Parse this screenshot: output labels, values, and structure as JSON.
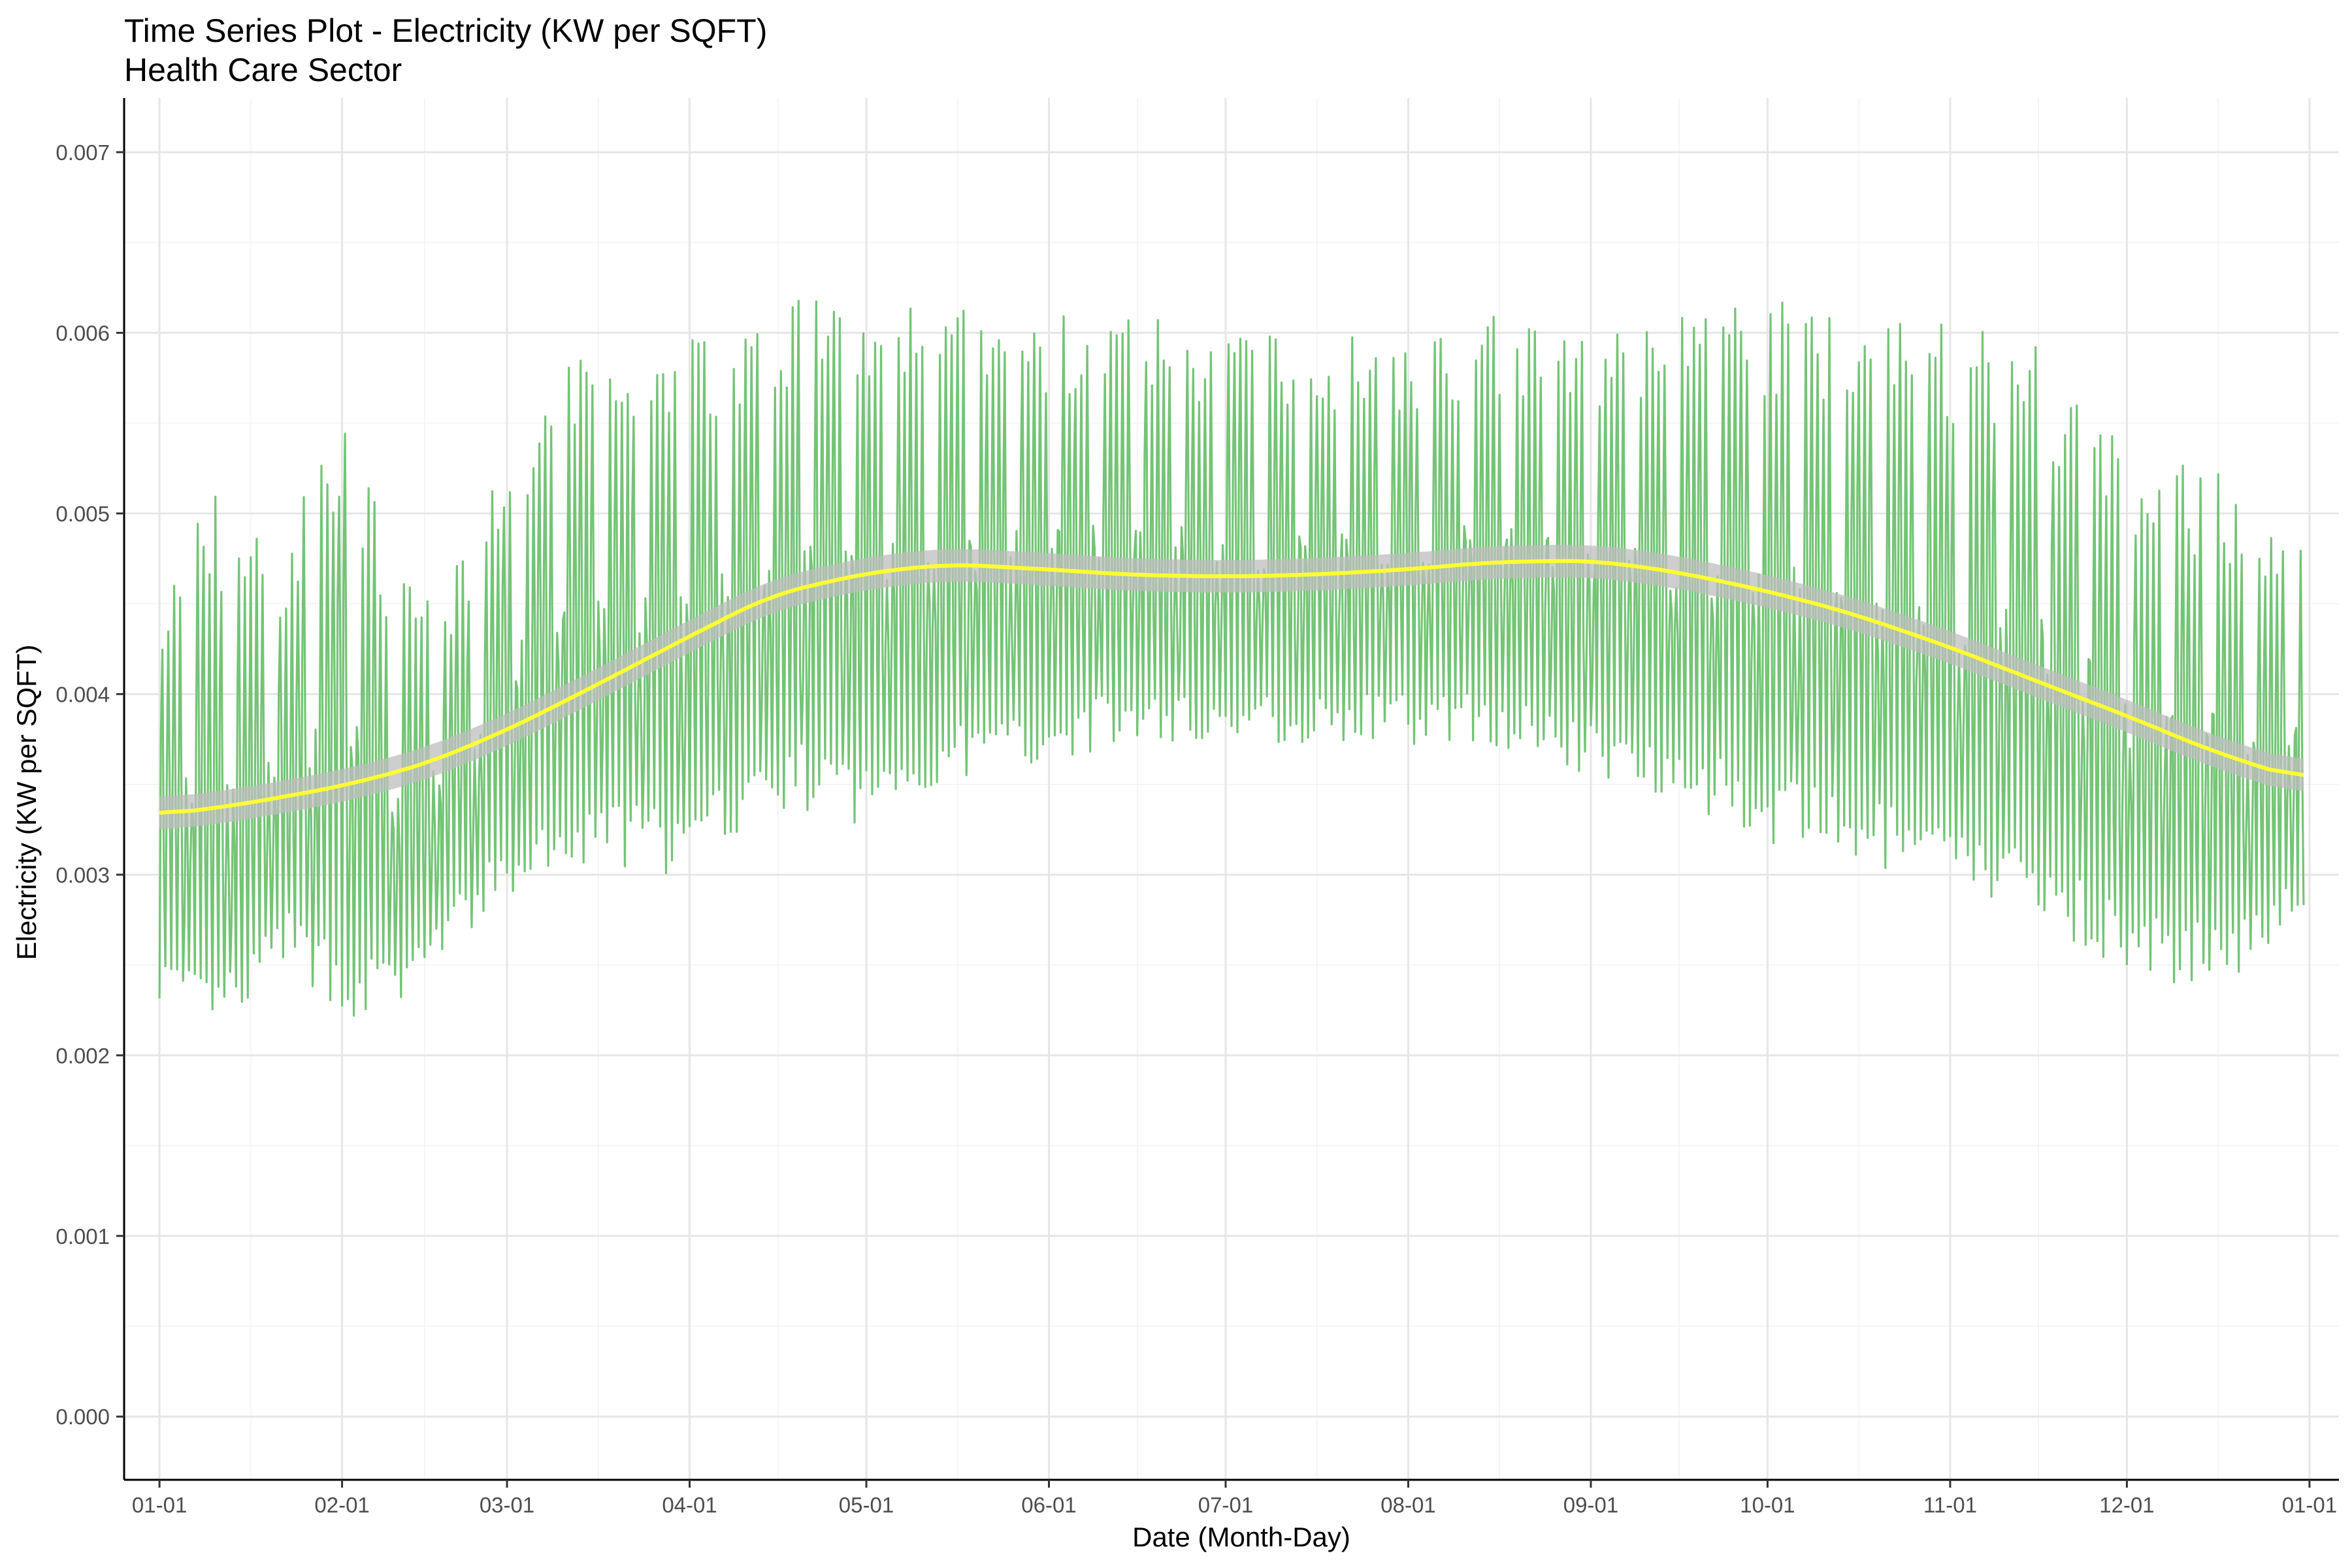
{
  "chart_data": {
    "type": "line",
    "title": "Time Series Plot - Electricity (KW per SQFT)",
    "subtitle": "Health Care Sector",
    "xlabel": "Date (Month-Day)",
    "ylabel": "Electricity (KW per SQFT)",
    "x_ticks": [
      "01-01",
      "02-01",
      "03-01",
      "04-01",
      "05-01",
      "06-01",
      "07-01",
      "08-01",
      "09-01",
      "10-01",
      "11-01",
      "12-01",
      "01-01"
    ],
    "y_ticks": [
      "0.000",
      "0.001",
      "0.002",
      "0.003",
      "0.004",
      "0.005",
      "0.006",
      "0.007"
    ],
    "xlim": [
      "2018-12-26",
      "2020-01-06"
    ],
    "ylim": [
      -0.00035,
      0.0073
    ],
    "grid": true,
    "legend": "none",
    "colors": {
      "raw": "#74c476",
      "smooth": "#ffff33",
      "band": "#bdbdbd"
    },
    "series": [
      {
        "style": "raw-daily-cycle",
        "note_values": "daily min and max envelope by date",
        "x": [
          "2019-01-01",
          "2019-01-08",
          "2019-01-15",
          "2019-01-22",
          "2019-02-01",
          "2019-02-10",
          "2019-02-20",
          "2019-03-01",
          "2019-03-10",
          "2019-03-20",
          "2019-04-01",
          "2019-04-10",
          "2019-04-20",
          "2019-05-01",
          "2019-05-10",
          "2019-05-20",
          "2019-06-01",
          "2019-06-15",
          "2019-07-01",
          "2019-07-15",
          "2019-08-01",
          "2019-08-15",
          "2019-09-01",
          "2019-09-15",
          "2019-10-01",
          "2019-10-15",
          "2019-11-01",
          "2019-11-15",
          "2019-12-01",
          "2019-12-10",
          "2019-12-20",
          "2019-12-31"
        ],
        "low": [
          0.0022,
          0.0019,
          0.002,
          0.0024,
          0.002,
          0.0021,
          0.0025,
          0.0027,
          0.0028,
          0.0029,
          0.0028,
          0.0031,
          0.0032,
          0.0031,
          0.0033,
          0.0034,
          0.0035,
          0.0036,
          0.0036,
          0.0036,
          0.0036,
          0.0036,
          0.0034,
          0.0033,
          0.003,
          0.0029,
          0.0027,
          0.0026,
          0.0023,
          0.0022,
          0.0023,
          0.0027
        ],
        "high": [
          0.0045,
          0.0052,
          0.005,
          0.0048,
          0.0058,
          0.0046,
          0.0047,
          0.0055,
          0.0058,
          0.006,
          0.006,
          0.0061,
          0.0063,
          0.0062,
          0.0062,
          0.0061,
          0.0061,
          0.0061,
          0.006,
          0.006,
          0.006,
          0.0061,
          0.006,
          0.0061,
          0.0062,
          0.0062,
          0.0061,
          0.006,
          0.0054,
          0.0053,
          0.0052,
          0.0049
        ]
      },
      {
        "style": "smooth-trend",
        "x": [
          "2019-01-01",
          "2019-01-15",
          "2019-02-01",
          "2019-02-15",
          "2019-03-01",
          "2019-03-15",
          "2019-04-01",
          "2019-04-15",
          "2019-05-01",
          "2019-05-15",
          "2019-06-01",
          "2019-06-15",
          "2019-07-01",
          "2019-07-15",
          "2019-08-01",
          "2019-08-15",
          "2019-09-01",
          "2019-09-15",
          "2019-10-01",
          "2019-10-15",
          "2019-11-01",
          "2019-11-15",
          "2019-12-01",
          "2019-12-15",
          "2019-12-31"
        ],
        "values": [
          0.00333,
          0.00339,
          0.00349,
          0.00361,
          0.0038,
          0.00403,
          0.00432,
          0.00455,
          0.00467,
          0.00472,
          0.00469,
          0.00466,
          0.00465,
          0.00466,
          0.00469,
          0.00473,
          0.00474,
          0.00468,
          0.00457,
          0.00445,
          0.00426,
          0.00408,
          0.00388,
          0.00369,
          0.00352
        ],
        "band": 9e-05
      }
    ]
  }
}
